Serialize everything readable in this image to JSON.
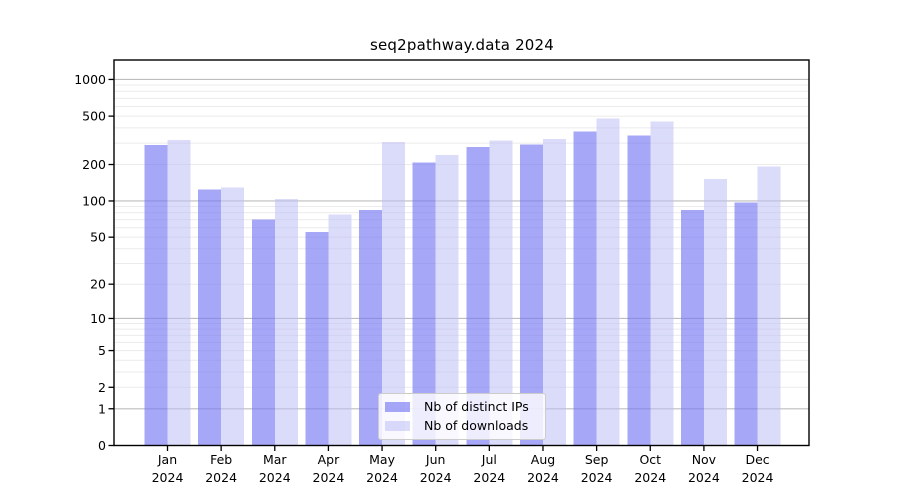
{
  "window": {
    "title": "seq2pathway.data 2024"
  },
  "chart_data": {
    "type": "bar",
    "title": "seq2pathway.data 2024",
    "categories": [
      "Jan",
      "Feb",
      "Mar",
      "Apr",
      "May",
      "Jun",
      "Jul",
      "Aug",
      "Sep",
      "Oct",
      "Nov",
      "Dec"
    ],
    "category_year": "2024",
    "series": [
      {
        "name": "Nb of distinct IPs",
        "color": "rgba(120,120,245,0.65)",
        "values": [
          290,
          124,
          70,
          55,
          84,
          208,
          280,
          292,
          375,
          345,
          84,
          97
        ]
      },
      {
        "name": "Nb of downloads",
        "color": "rgba(190,190,246,0.55)",
        "values": [
          318,
          129,
          104,
          77,
          305,
          240,
          315,
          325,
          476,
          450,
          152,
          193
        ]
      }
    ],
    "y_scale": "log10(value+1)",
    "y_ticks": [
      0,
      1,
      2,
      5,
      10,
      20,
      50,
      100,
      200,
      500,
      1000
    ],
    "ylim": [
      0,
      1440
    ],
    "grid": "on",
    "legend_position": "lower center",
    "colors": {
      "major_grid": "#bdbdbd",
      "minor_grid": "#ebebeb",
      "spine": "#000000",
      "tick_text": "#000000"
    }
  }
}
